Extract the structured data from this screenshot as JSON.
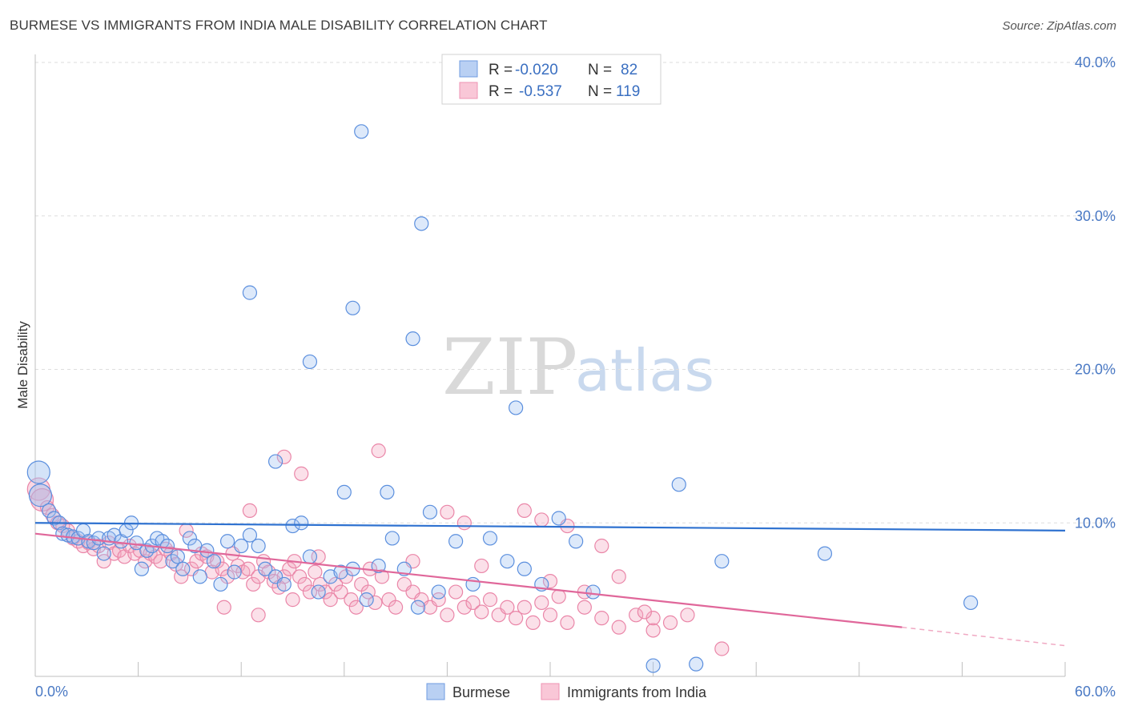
{
  "header": {
    "title": "BURMESE VS IMMIGRANTS FROM INDIA MALE DISABILITY CORRELATION CHART",
    "source": "Source: ZipAtlas.com"
  },
  "watermark": {
    "zip": "ZIP",
    "atlas": "atlas"
  },
  "legend": {
    "rows": [
      {
        "r_label": "R =",
        "r_value": "-0.020",
        "n_label": "N =",
        "n_value": "82"
      },
      {
        "r_label": "R =",
        "r_value": "-0.537",
        "n_label": "N =",
        "n_value": "119"
      }
    ]
  },
  "bottom_legend": [
    "Burmese",
    "Immigrants from India"
  ],
  "chart_data": {
    "type": "scatter",
    "title": "BURMESE VS IMMIGRANTS FROM INDIA MALE DISABILITY CORRELATION CHART",
    "xlabel": "",
    "ylabel": "Male Disability",
    "xlim": [
      0,
      60
    ],
    "ylim": [
      0,
      40
    ],
    "x_tick_labels": [
      "0.0%",
      "60.0%"
    ],
    "y_ticks": [
      10,
      20,
      30,
      40
    ],
    "y_tick_labels": [
      "10.0%",
      "20.0%",
      "30.0%",
      "40.0%"
    ],
    "grid": "horizontal dashed",
    "legend_placement": "top-center",
    "colors": {
      "Burmese": "#7aa6e6",
      "Immigrants from India": "#f4a6c0",
      "burmese_line": "#2f72d0",
      "india_line": "#e0679a"
    },
    "series": [
      {
        "name": "Burmese",
        "r": -0.02,
        "n": 82,
        "trend": {
          "x": [
            0,
            60
          ],
          "y": [
            10.0,
            9.5
          ]
        },
        "points": [
          [
            0.2,
            13.3
          ],
          [
            0.3,
            11.8
          ],
          [
            0.8,
            10.8
          ],
          [
            1.1,
            10.3
          ],
          [
            1.4,
            10.0
          ],
          [
            1.6,
            9.3
          ],
          [
            1.9,
            9.2
          ],
          [
            2.2,
            9.1
          ],
          [
            2.5,
            9.0
          ],
          [
            2.8,
            9.5
          ],
          [
            3.1,
            8.8
          ],
          [
            3.4,
            8.7
          ],
          [
            3.7,
            9.0
          ],
          [
            4.0,
            8.0
          ],
          [
            4.3,
            9.0
          ],
          [
            4.6,
            9.2
          ],
          [
            5.0,
            8.8
          ],
          [
            5.3,
            9.5
          ],
          [
            5.6,
            10.0
          ],
          [
            5.9,
            8.7
          ],
          [
            6.2,
            7.0
          ],
          [
            6.5,
            8.2
          ],
          [
            6.8,
            8.5
          ],
          [
            7.1,
            9.0
          ],
          [
            7.4,
            8.8
          ],
          [
            7.7,
            8.5
          ],
          [
            8.0,
            7.5
          ],
          [
            8.3,
            7.8
          ],
          [
            8.6,
            7.0
          ],
          [
            9.0,
            9.0
          ],
          [
            9.3,
            8.5
          ],
          [
            9.6,
            6.5
          ],
          [
            10.0,
            8.2
          ],
          [
            10.4,
            7.5
          ],
          [
            10.8,
            6.0
          ],
          [
            11.2,
            8.8
          ],
          [
            11.6,
            6.8
          ],
          [
            12.0,
            8.5
          ],
          [
            12.5,
            9.2
          ],
          [
            13.0,
            8.5
          ],
          [
            13.4,
            7.0
          ],
          [
            14.0,
            6.5
          ],
          [
            14.5,
            6.0
          ],
          [
            15.0,
            9.8
          ],
          [
            15.5,
            10.0
          ],
          [
            16.0,
            7.8
          ],
          [
            16.5,
            5.5
          ],
          [
            17.2,
            6.5
          ],
          [
            17.8,
            6.8
          ],
          [
            18.5,
            7.0
          ],
          [
            19.3,
            5.0
          ],
          [
            20.0,
            7.2
          ],
          [
            20.8,
            9.0
          ],
          [
            21.5,
            7.0
          ],
          [
            22.3,
            4.5
          ],
          [
            23.0,
            10.7
          ],
          [
            23.5,
            5.5
          ],
          [
            24.5,
            8.8
          ],
          [
            25.5,
            6.0
          ],
          [
            26.5,
            9.0
          ],
          [
            27.5,
            7.5
          ],
          [
            28.5,
            7.0
          ],
          [
            29.5,
            6.0
          ],
          [
            30.5,
            10.3
          ],
          [
            31.5,
            8.8
          ],
          [
            32.5,
            5.5
          ],
          [
            14.0,
            14.0
          ],
          [
            18.0,
            12.0
          ],
          [
            20.5,
            12.0
          ],
          [
            12.5,
            25.0
          ],
          [
            18.5,
            24.0
          ],
          [
            16.0,
            20.5
          ],
          [
            22.0,
            22.0
          ],
          [
            22.5,
            29.5
          ],
          [
            28.0,
            17.5
          ],
          [
            19.0,
            35.5
          ],
          [
            37.5,
            12.5
          ],
          [
            40.0,
            7.5
          ],
          [
            46.0,
            8.0
          ],
          [
            54.5,
            4.8
          ],
          [
            38.5,
            0.8
          ],
          [
            36.0,
            0.7
          ]
        ]
      },
      {
        "name": "Immigrants from India",
        "r": -0.537,
        "n": 119,
        "trend": {
          "x": [
            0,
            50.5
          ],
          "y": [
            9.3,
            3.2
          ],
          "dashed_x": [
            50.5,
            60
          ],
          "dashed_y": [
            3.2,
            2.0
          ]
        },
        "points": [
          [
            0.2,
            12.2
          ],
          [
            0.4,
            11.5
          ],
          [
            0.7,
            11.0
          ],
          [
            1.0,
            10.5
          ],
          [
            1.3,
            10.0
          ],
          [
            1.6,
            9.8
          ],
          [
            1.9,
            9.5
          ],
          [
            2.2,
            9.0
          ],
          [
            2.5,
            8.8
          ],
          [
            2.8,
            8.5
          ],
          [
            3.1,
            8.7
          ],
          [
            3.4,
            8.3
          ],
          [
            3.7,
            8.5
          ],
          [
            4.0,
            7.5
          ],
          [
            4.3,
            8.7
          ],
          [
            4.6,
            8.0
          ],
          [
            4.9,
            8.2
          ],
          [
            5.2,
            7.8
          ],
          [
            5.5,
            8.5
          ],
          [
            5.8,
            8.0
          ],
          [
            6.1,
            8.2
          ],
          [
            6.4,
            7.5
          ],
          [
            6.7,
            8.0
          ],
          [
            7.0,
            7.8
          ],
          [
            7.3,
            7.5
          ],
          [
            7.6,
            8.3
          ],
          [
            7.9,
            8.0
          ],
          [
            8.2,
            7.3
          ],
          [
            8.5,
            6.5
          ],
          [
            8.8,
            9.5
          ],
          [
            9.1,
            7.0
          ],
          [
            9.4,
            7.5
          ],
          [
            9.7,
            8.0
          ],
          [
            10.0,
            7.8
          ],
          [
            10.3,
            6.8
          ],
          [
            10.6,
            7.5
          ],
          [
            10.9,
            7.0
          ],
          [
            11.2,
            6.5
          ],
          [
            11.5,
            8.0
          ],
          [
            11.8,
            7.2
          ],
          [
            12.1,
            6.8
          ],
          [
            12.4,
            7.0
          ],
          [
            12.7,
            6.0
          ],
          [
            13.0,
            6.5
          ],
          [
            13.3,
            7.5
          ],
          [
            13.6,
            6.8
          ],
          [
            13.9,
            6.2
          ],
          [
            14.2,
            5.8
          ],
          [
            14.5,
            6.5
          ],
          [
            14.8,
            7.0
          ],
          [
            15.1,
            7.5
          ],
          [
            15.4,
            6.5
          ],
          [
            15.7,
            6.0
          ],
          [
            16.0,
            5.5
          ],
          [
            16.3,
            6.8
          ],
          [
            16.6,
            6.0
          ],
          [
            16.9,
            5.5
          ],
          [
            17.2,
            5.0
          ],
          [
            17.5,
            6.0
          ],
          [
            17.8,
            5.5
          ],
          [
            18.1,
            6.5
          ],
          [
            18.4,
            5.0
          ],
          [
            18.7,
            4.5
          ],
          [
            19.0,
            6.0
          ],
          [
            19.4,
            5.5
          ],
          [
            19.8,
            4.8
          ],
          [
            20.2,
            6.5
          ],
          [
            20.6,
            5.0
          ],
          [
            21.0,
            4.5
          ],
          [
            21.5,
            6.0
          ],
          [
            22.0,
            5.5
          ],
          [
            22.5,
            5.0
          ],
          [
            23.0,
            4.5
          ],
          [
            23.5,
            5.0
          ],
          [
            24.0,
            4.0
          ],
          [
            24.5,
            5.5
          ],
          [
            25.0,
            4.5
          ],
          [
            25.5,
            4.8
          ],
          [
            26.0,
            4.2
          ],
          [
            26.5,
            5.0
          ],
          [
            27.0,
            4.0
          ],
          [
            27.5,
            4.5
          ],
          [
            28.0,
            3.8
          ],
          [
            28.5,
            4.5
          ],
          [
            29.0,
            3.5
          ],
          [
            29.5,
            4.8
          ],
          [
            30.0,
            4.0
          ],
          [
            30.5,
            5.2
          ],
          [
            31.0,
            3.5
          ],
          [
            32.0,
            4.5
          ],
          [
            33.0,
            3.8
          ],
          [
            34.0,
            3.2
          ],
          [
            35.0,
            4.0
          ],
          [
            36.0,
            3.0
          ],
          [
            37.0,
            3.5
          ],
          [
            12.5,
            10.8
          ],
          [
            14.5,
            14.3
          ],
          [
            15.5,
            13.2
          ],
          [
            20.0,
            14.7
          ],
          [
            24.0,
            10.7
          ],
          [
            25.0,
            10.0
          ],
          [
            28.5,
            10.8
          ],
          [
            29.5,
            10.2
          ],
          [
            31.0,
            9.8
          ],
          [
            33.0,
            8.5
          ],
          [
            34.0,
            6.5
          ],
          [
            36.0,
            3.8
          ],
          [
            38.0,
            4.0
          ],
          [
            40.0,
            1.8
          ],
          [
            11.0,
            4.5
          ],
          [
            13.0,
            4.0
          ],
          [
            15.0,
            5.0
          ],
          [
            16.5,
            7.8
          ],
          [
            19.5,
            7.0
          ],
          [
            22.0,
            7.5
          ],
          [
            26.0,
            7.2
          ],
          [
            30.0,
            6.2
          ],
          [
            32.0,
            5.5
          ],
          [
            35.5,
            4.2
          ]
        ]
      }
    ]
  }
}
